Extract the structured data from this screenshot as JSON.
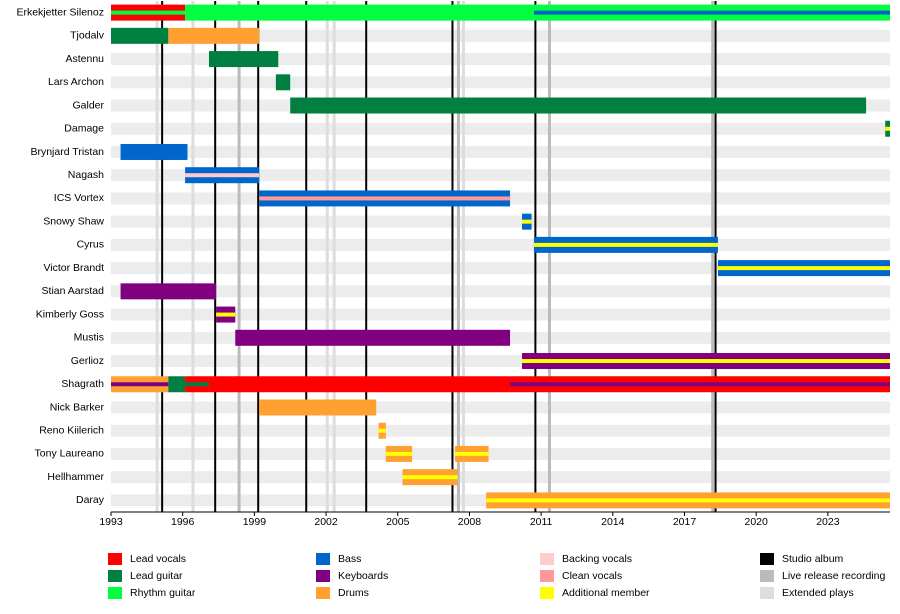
{
  "chart_data": {
    "type": "timeline",
    "categories": [
      "Erkekjetter Silenoz",
      "Tjodalv",
      "Astennu",
      "Lars Archon",
      "Galder",
      "Damage",
      "Brynjard Tristan",
      "Nagash",
      "ICS Vortex",
      "Snowy Shaw",
      "Cyrus",
      "Victor Brandt",
      "Stian Aarstad",
      "Kimberly Goss",
      "Mustis",
      "Gerlioz",
      "Shagrath",
      "Nick Barker",
      "Reno Kiilerich",
      "Tony Laureano",
      "Hellhammer",
      "Daray"
    ],
    "xlim": [
      1993,
      2025.6
    ],
    "xticks": [
      1993,
      1996,
      1999,
      2002,
      2005,
      2008,
      2011,
      2014,
      2017,
      2020,
      2023
    ],
    "roles": [
      {
        "name": "Lead vocals",
        "color": "#ff0000"
      },
      {
        "name": "Lead guitar",
        "color": "#008040"
      },
      {
        "name": "Rhythm guitar",
        "color": "#00ff40"
      },
      {
        "name": "Bass",
        "color": "#0066cc"
      },
      {
        "name": "Keyboards",
        "color": "#800080"
      },
      {
        "name": "Drums",
        "color": "#ffa030"
      },
      {
        "name": "Backing vocals",
        "color": "#ffcccc"
      },
      {
        "name": "Clean vocals",
        "color": "#ff9999"
      },
      {
        "name": "Additional member",
        "color": "#ffff00"
      }
    ],
    "lines": [
      {
        "name": "Studio album",
        "color": "#000000",
        "years": [
          1995.14,
          1997.36,
          1999.16,
          2001.17,
          2003.68,
          2007.29,
          2010.76,
          2018.3
        ]
      },
      {
        "name": "Live release recording",
        "color": "#bbbbbb",
        "years": [
          1998.36,
          2007.54,
          2011.35,
          2018.18
        ]
      },
      {
        "name": "Extended plays",
        "color": "#dddddd",
        "years": [
          1994.93,
          1996.43,
          2002.05,
          2002.34,
          2007.75
        ]
      }
    ],
    "bars": [
      {
        "segments": [
          {
            "start": 1993,
            "end": 1996.1,
            "roles": [
              "Lead vocals",
              "Rhythm guitar"
            ]
          },
          {
            "start": 1996.1,
            "end": 2010.7,
            "roles": [
              "Rhythm guitar"
            ]
          },
          {
            "start": 2010.7,
            "end": 2025.6,
            "roles": [
              "Rhythm guitar",
              "Bass"
            ]
          }
        ]
      },
      {
        "segments": [
          {
            "start": 1993,
            "end": 1995.4,
            "roles": [
              "Lead guitar"
            ]
          },
          {
            "start": 1995.4,
            "end": 1999.2,
            "roles": [
              "Drums"
            ]
          }
        ]
      },
      {
        "segments": [
          {
            "start": 1997.1,
            "end": 2000.0,
            "roles": [
              "Lead guitar"
            ]
          }
        ]
      },
      {
        "segments": [
          {
            "start": 1999.9,
            "end": 2000.5,
            "roles": [
              "Lead guitar"
            ]
          }
        ]
      },
      {
        "segments": [
          {
            "start": 2000.5,
            "end": 2024.6,
            "roles": [
              "Lead guitar"
            ]
          }
        ]
      },
      {
        "segments": [
          {
            "start": 2025.4,
            "end": 2025.6,
            "roles": [
              "Lead guitar",
              "Additional member"
            ]
          }
        ]
      },
      {
        "segments": [
          {
            "start": 1993.4,
            "end": 1996.2,
            "roles": [
              "Bass"
            ]
          }
        ]
      },
      {
        "segments": [
          {
            "start": 1996.1,
            "end": 1999.2,
            "roles": [
              "Bass",
              "Backing vocals"
            ]
          }
        ]
      },
      {
        "segments": [
          {
            "start": 1999.2,
            "end": 2009.7,
            "roles": [
              "Bass",
              "Clean vocals"
            ]
          }
        ]
      },
      {
        "segments": [
          {
            "start": 2010.2,
            "end": 2010.6,
            "roles": [
              "Bass",
              "Additional member"
            ]
          }
        ]
      },
      {
        "segments": [
          {
            "start": 2010.7,
            "end": 2018.4,
            "roles": [
              "Bass",
              "Additional member"
            ]
          }
        ]
      },
      {
        "segments": [
          {
            "start": 2018.4,
            "end": 2025.6,
            "roles": [
              "Bass",
              "Additional member"
            ]
          }
        ]
      },
      {
        "segments": [
          {
            "start": 1993.4,
            "end": 1997.4,
            "roles": [
              "Keyboards"
            ]
          }
        ]
      },
      {
        "segments": [
          {
            "start": 1997.4,
            "end": 1998.2,
            "roles": [
              "Keyboards",
              "Additional member"
            ]
          }
        ]
      },
      {
        "segments": [
          {
            "start": 1998.2,
            "end": 2009.7,
            "roles": [
              "Keyboards"
            ]
          }
        ]
      },
      {
        "segments": [
          {
            "start": 2010.2,
            "end": 2025.6,
            "roles": [
              "Keyboards",
              "Additional member"
            ]
          }
        ]
      },
      {
        "segments": [
          {
            "start": 1993,
            "end": 1995.4,
            "roles": [
              "Drums",
              "Keyboards"
            ]
          },
          {
            "start": 1995.4,
            "end": 1996.1,
            "roles": [
              "Lead guitar"
            ]
          },
          {
            "start": 1996.1,
            "end": 1997.1,
            "roles": [
              "Lead vocals",
              "Lead guitar"
            ]
          },
          {
            "start": 1997.1,
            "end": 2009.7,
            "roles": [
              "Lead vocals"
            ]
          },
          {
            "start": 2009.7,
            "end": 2025.6,
            "roles": [
              "Lead vocals",
              "Keyboards"
            ]
          }
        ]
      },
      {
        "segments": [
          {
            "start": 1999.2,
            "end": 2004.1,
            "roles": [
              "Drums"
            ]
          }
        ]
      },
      {
        "segments": [
          {
            "start": 2004.2,
            "end": 2004.5,
            "roles": [
              "Drums",
              "Additional member"
            ]
          }
        ]
      },
      {
        "segments": [
          {
            "start": 2004.5,
            "end": 2005.6,
            "roles": [
              "Drums",
              "Additional member"
            ]
          },
          {
            "start": 2007.4,
            "end": 2008.8,
            "roles": [
              "Drums",
              "Additional member"
            ]
          }
        ]
      },
      {
        "segments": [
          {
            "start": 2005.2,
            "end": 2007.5,
            "roles": [
              "Drums",
              "Additional member"
            ]
          }
        ]
      },
      {
        "segments": [
          {
            "start": 2008.7,
            "end": 2025.6,
            "roles": [
              "Drums",
              "Additional member"
            ]
          }
        ]
      }
    ]
  }
}
